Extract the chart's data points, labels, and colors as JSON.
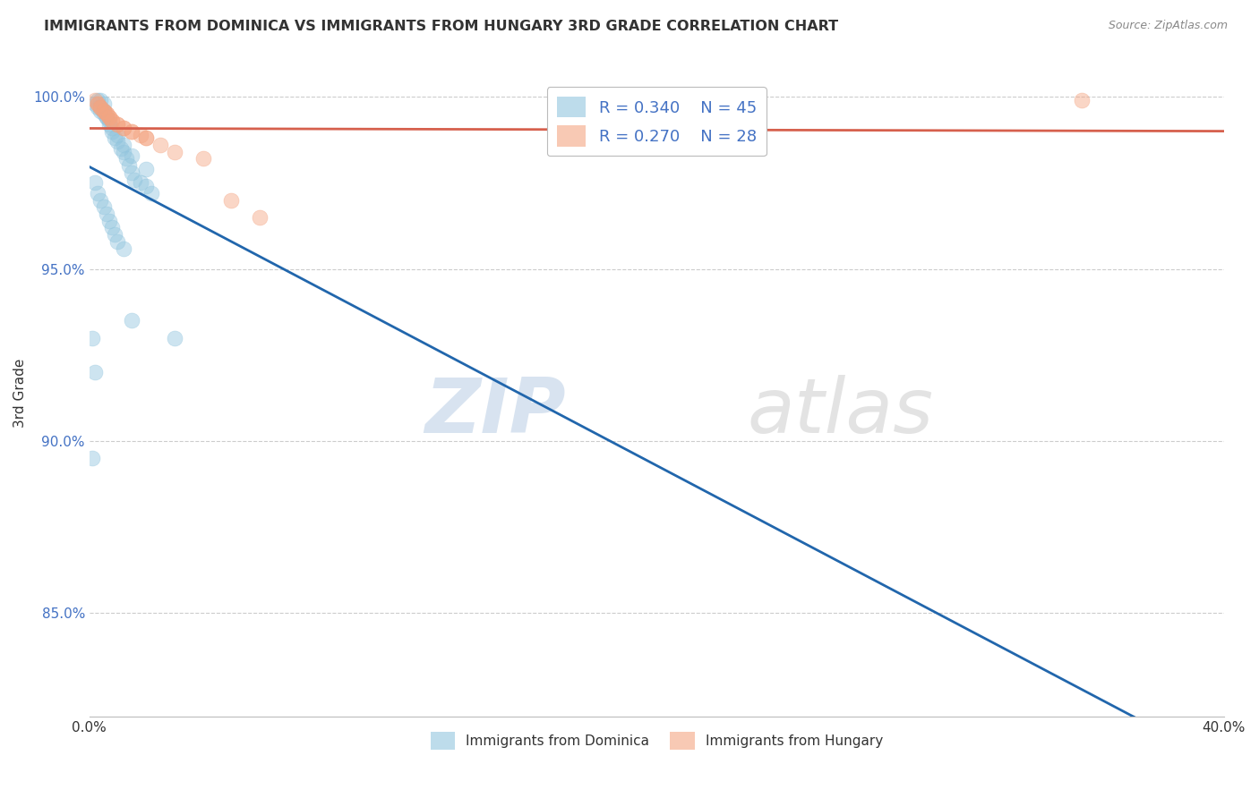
{
  "title": "IMMIGRANTS FROM DOMINICA VS IMMIGRANTS FROM HUNGARY 3RD GRADE CORRELATION CHART",
  "source": "Source: ZipAtlas.com",
  "ylabel": "3rd Grade",
  "xmin": 0.0,
  "xmax": 0.4,
  "ymin": 0.82,
  "ymax": 1.008,
  "yticks": [
    0.85,
    0.9,
    0.95,
    1.0
  ],
  "ytick_labels": [
    "85.0%",
    "90.0%",
    "95.0%",
    "100.0%"
  ],
  "xtick_positions": [
    0.0,
    0.1,
    0.2,
    0.3,
    0.4
  ],
  "xtick_labels": [
    "0.0%",
    "",
    "",
    "",
    "40.0%"
  ],
  "dominica_color": "#92c5de",
  "hungary_color": "#f4a582",
  "dominica_line_color": "#2166ac",
  "hungary_line_color": "#d6604d",
  "dominica_R": "0.340",
  "dominica_N": "45",
  "hungary_R": "0.270",
  "hungary_N": "28",
  "legend_label_dominica": "Immigrants from Dominica",
  "legend_label_hungary": "Immigrants from Hungary",
  "watermark_text": "ZIPatlas",
  "background_color": "#ffffff",
  "grid_color": "#cccccc",
  "title_color": "#333333",
  "source_color": "#888888",
  "ytick_color": "#4472c4",
  "dominica_points_x": [
    0.002,
    0.003,
    0.004,
    0.004,
    0.005,
    0.005,
    0.006,
    0.007,
    0.008,
    0.009,
    0.01,
    0.011,
    0.012,
    0.013,
    0.014,
    0.015,
    0.016,
    0.018,
    0.02,
    0.022,
    0.003,
    0.004,
    0.005,
    0.006,
    0.007,
    0.008,
    0.01,
    0.012,
    0.015,
    0.02,
    0.002,
    0.003,
    0.004,
    0.005,
    0.006,
    0.007,
    0.008,
    0.009,
    0.01,
    0.012,
    0.015,
    0.03,
    0.001,
    0.002,
    0.001
  ],
  "dominica_points_y": [
    0.998,
    0.997,
    0.999,
    0.996,
    0.998,
    0.995,
    0.994,
    0.992,
    0.99,
    0.988,
    0.987,
    0.985,
    0.984,
    0.982,
    0.98,
    0.978,
    0.976,
    0.975,
    0.974,
    0.972,
    0.999,
    0.997,
    0.996,
    0.994,
    0.993,
    0.991,
    0.989,
    0.986,
    0.983,
    0.979,
    0.975,
    0.972,
    0.97,
    0.968,
    0.966,
    0.964,
    0.962,
    0.96,
    0.958,
    0.956,
    0.935,
    0.93,
    0.93,
    0.92,
    0.895
  ],
  "hungary_points_x": [
    0.002,
    0.003,
    0.004,
    0.005,
    0.006,
    0.007,
    0.008,
    0.01,
    0.012,
    0.015,
    0.018,
    0.02,
    0.003,
    0.004,
    0.005,
    0.006,
    0.007,
    0.008,
    0.01,
    0.012,
    0.015,
    0.02,
    0.025,
    0.03,
    0.04,
    0.05,
    0.06,
    0.35
  ],
  "hungary_points_y": [
    0.999,
    0.998,
    0.997,
    0.996,
    0.995,
    0.994,
    0.993,
    0.992,
    0.991,
    0.99,
    0.989,
    0.988,
    0.998,
    0.997,
    0.996,
    0.995,
    0.994,
    0.993,
    0.992,
    0.991,
    0.99,
    0.988,
    0.986,
    0.984,
    0.982,
    0.97,
    0.965,
    0.999
  ]
}
